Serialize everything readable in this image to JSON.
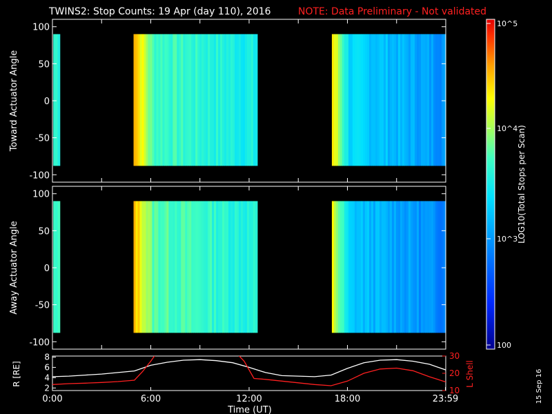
{
  "title": {
    "main": "TWINS2: Stop Counts: 19 Apr (day 110), 2016",
    "note": "NOTE: Data Preliminary - Not validated"
  },
  "stamp": "15 Sep 16",
  "colors": {
    "background": "#000000",
    "axes": "#ffffff",
    "note": "#ff2020",
    "ephem_r": "#ffffff",
    "ephem_l": "#ff2020"
  },
  "colorbar": {
    "label": "LOG10(Total Stops per Scan)",
    "ticks": [
      "10^5",
      "10^4",
      "10^3",
      "100"
    ]
  },
  "chart_data": [
    {
      "type": "heatmap",
      "id": "toward",
      "ylabel": "Toward Actuator Angle",
      "ylim": [
        -110,
        110
      ],
      "yticks": [
        100,
        50,
        0,
        -50,
        -100
      ],
      "xlim": [
        0,
        24
      ],
      "angle_range": [
        -88,
        90
      ],
      "segments": [
        {
          "start_h": 0.05,
          "end_h": 0.45,
          "level": 0.55
        },
        {
          "start_h": 4.95,
          "end_h": 12.5,
          "level_start": 0.86,
          "level_mid": 0.58,
          "level_end": 0.5
        },
        {
          "start_h": 17.05,
          "end_h": 24.0,
          "level_start": 0.78,
          "level_mid": 0.45,
          "level_end": 0.33
        }
      ]
    },
    {
      "type": "heatmap",
      "id": "away",
      "ylabel": "Away Actuator Angle",
      "ylim": [
        -110,
        110
      ],
      "yticks": [
        100,
        50,
        0,
        -50,
        -100
      ],
      "xlim": [
        0,
        24
      ],
      "angle_range": [
        -88,
        90
      ],
      "segments": [
        {
          "start_h": 0.05,
          "end_h": 0.45,
          "level": 0.55
        },
        {
          "start_h": 4.95,
          "end_h": 12.5,
          "level_start": 0.84,
          "level_mid": 0.6,
          "level_end": 0.52
        },
        {
          "start_h": 17.05,
          "end_h": 24.0,
          "level_start": 0.74,
          "level_mid": 0.42,
          "level_end": 0.3
        }
      ]
    },
    {
      "type": "line",
      "id": "ephemeris",
      "xlabel": "Time (UT)",
      "xticks": [
        "0:00",
        "6:00",
        "12:00",
        "18:00",
        "23:59"
      ],
      "xtick_hours": [
        0,
        6,
        12,
        18,
        23.98
      ],
      "left_axis": {
        "label": "R [RE]",
        "ticks": [
          8,
          6,
          4,
          2
        ],
        "ylim": [
          1.5,
          8.2
        ]
      },
      "right_axis": {
        "label": "L Shell",
        "ticks": [
          30,
          20,
          10
        ],
        "ylim": [
          10,
          30
        ]
      },
      "series": [
        {
          "axis": "left",
          "x": [
            0,
            1,
            2,
            3,
            4,
            5,
            6,
            7,
            8,
            9,
            10,
            11,
            12,
            13,
            14,
            15,
            16,
            17,
            18,
            19,
            20,
            21,
            22,
            23,
            24
          ],
          "values": [
            4.2,
            4.3,
            4.5,
            4.7,
            5.0,
            5.3,
            6.4,
            7.0,
            7.4,
            7.5,
            7.3,
            6.9,
            6.0,
            5.0,
            4.4,
            4.3,
            4.2,
            4.5,
            5.8,
            6.9,
            7.4,
            7.5,
            7.2,
            6.6,
            5.5
          ]
        },
        {
          "axis": "right",
          "x": [
            0,
            1,
            2,
            3,
            4,
            5,
            5.5,
            6,
            6.3,
            11.3,
            11.7,
            12.3,
            13,
            14,
            15,
            16,
            17,
            18,
            19,
            20,
            21,
            22,
            23,
            24
          ],
          "values": [
            13.5,
            14,
            14.3,
            14.7,
            15.2,
            16,
            21,
            27,
            31,
            31,
            27,
            17,
            16.5,
            15.5,
            14.5,
            13.5,
            12.8,
            15.5,
            20,
            22.5,
            23,
            21.5,
            18,
            15
          ]
        }
      ]
    }
  ]
}
